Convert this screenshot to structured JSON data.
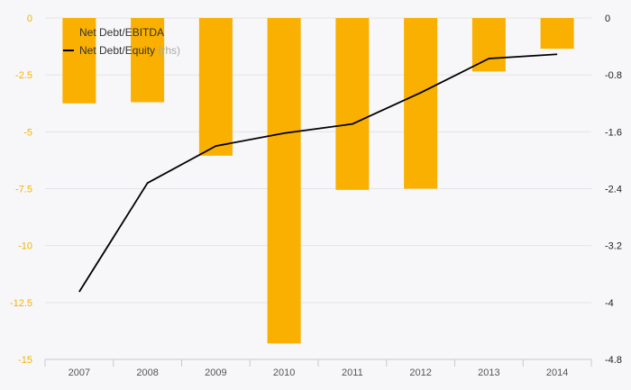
{
  "chart_data": {
    "type": "bar",
    "title": "",
    "categories": [
      "2007",
      "2008",
      "2009",
      "2010",
      "2011",
      "2012",
      "2013",
      "2014"
    ],
    "series": [
      {
        "name": "Net Debt/EBITDA",
        "type": "bar",
        "axis": "left",
        "color": "#f9b000",
        "values": [
          -3.75,
          -3.7,
          -6.05,
          -14.3,
          -7.55,
          -7.5,
          -2.35,
          -1.35
        ]
      },
      {
        "name": "Net Debt/Equity",
        "type": "line",
        "axis": "right",
        "color": "#000000",
        "values": [
          -3.85,
          -2.32,
          -1.8,
          -1.62,
          -1.49,
          -1.05,
          -0.57,
          -0.51
        ]
      }
    ],
    "y_left": {
      "ylim": [
        -15,
        0
      ],
      "ticks": [
        0,
        -2.5,
        -5,
        -7.5,
        -10,
        -12.5,
        -15
      ],
      "tick_labels": [
        "0",
        "-2.5",
        "-5",
        "-7.5",
        "-10",
        "-12.5",
        "-15"
      ]
    },
    "y_right": {
      "ylim": [
        -4.8,
        0
      ],
      "ticks": [
        0,
        -0.8,
        -1.6,
        -2.4,
        -3.2,
        -4,
        -4.8
      ],
      "tick_labels": [
        "0",
        "-0.8",
        "-1.6",
        "-2.4",
        "-3.2",
        "-4",
        "-4.8"
      ]
    },
    "legend": {
      "placement": "top-left",
      "entries": [
        {
          "label": "Net Debt/EBITDA",
          "suffix": ""
        },
        {
          "label": "Net Debt/Equity",
          "suffix": "(rhs)"
        }
      ]
    },
    "grid": true
  }
}
